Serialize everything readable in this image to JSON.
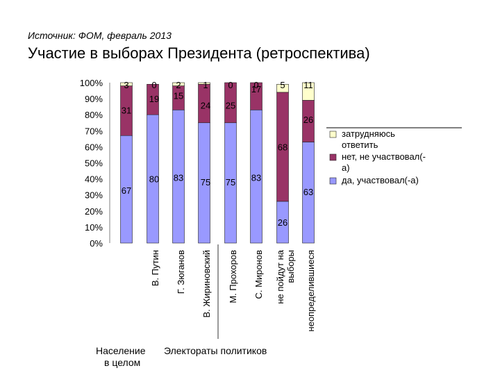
{
  "source": "Источник: ФОМ, февраль 2013",
  "title": "Участие в выборах Президента (ретроспектива)",
  "chart_data": {
    "type": "bar",
    "stacked": true,
    "percent_stacked": true,
    "categories": [
      "",
      "В. Путин",
      "Г. Зюганов",
      "В. Жириновский",
      "М. Прохоров",
      "С. Миронов",
      "не пойдут на выборы",
      "неопределившиеся"
    ],
    "series": [
      {
        "name": "да, участвовал(-а)",
        "values": [
          67,
          80,
          83,
          75,
          75,
          83,
          26,
          63
        ],
        "color": "#9999ff"
      },
      {
        "name": "нет, не участвовал(-а)",
        "values": [
          31,
          19,
          15,
          24,
          25,
          17,
          68,
          26
        ],
        "color": "#993366"
      },
      {
        "name": "затрудняюсь ответить",
        "values": [
          3,
          0,
          2,
          1,
          0,
          0,
          5,
          11
        ],
        "color": "#ffffcc"
      }
    ],
    "y_ticks": [
      "0%",
      "10%",
      "20%",
      "30%",
      "40%",
      "50%",
      "60%",
      "70%",
      "80%",
      "90%",
      "100%"
    ],
    "ylim": [
      0,
      100
    ],
    "legend_position": "right",
    "group_labels": {
      "population": "Население в целом",
      "electorates": "Электораты политиков"
    }
  }
}
